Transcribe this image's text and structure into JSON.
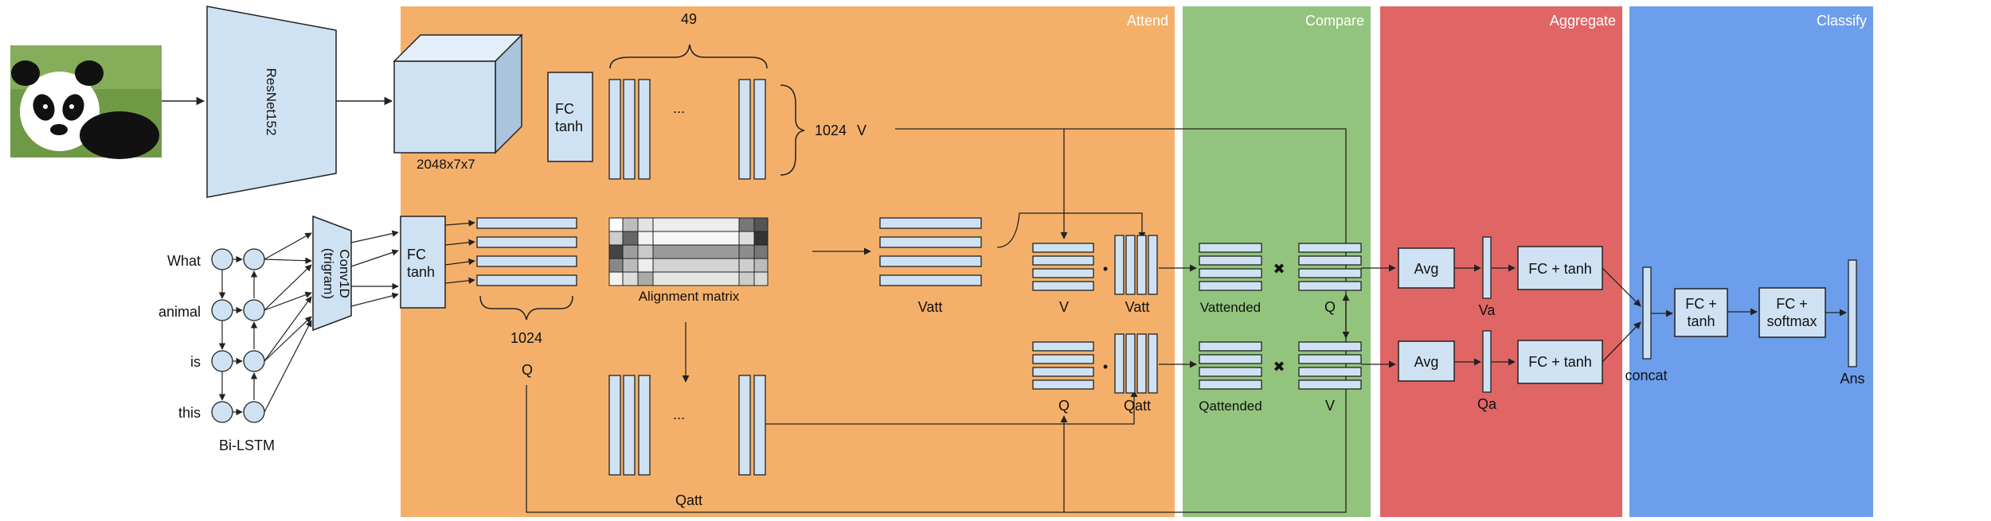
{
  "stages": {
    "attend": "Attend",
    "compare": "Compare",
    "aggregate": "Aggregate",
    "classify": "Classify"
  },
  "colors": {
    "attend": "#F4B06A",
    "compare": "#93C47D",
    "aggregate": "#E06666",
    "classify": "#6D9EEB",
    "block": "#CFE2F3",
    "stroke": "#222222"
  },
  "image": {
    "description_icon": "panda-photo-icon"
  },
  "resnet": {
    "label": "ResNet152"
  },
  "feature_map": {
    "label": "2048x7x7"
  },
  "fc_img": {
    "line1": "FC",
    "line2": "tanh"
  },
  "v_block": {
    "count_label": "49",
    "ellipsis": "...",
    "dim_label": "1024",
    "name": "V"
  },
  "question": {
    "words": [
      "What",
      "animal",
      "is",
      "this"
    ],
    "bilstm_label": "Bi-LSTM",
    "conv_line1": "Conv1D",
    "conv_line2": "(trigram)",
    "fc_line1": "FC",
    "fc_line2": "tanh",
    "dim_label": "1024",
    "name": "Q"
  },
  "alignment": {
    "label": "Alignment matrix"
  },
  "vatt": {
    "label": "Vatt"
  },
  "qatt": {
    "label": "Qatt",
    "ellipsis": "..."
  },
  "products": {
    "top_left": "V",
    "top_right": "Vatt",
    "bottom_left": "Q",
    "bottom_right": "Qatt",
    "dot": "•"
  },
  "compare": {
    "top_result": "Vattended",
    "top_other": "Q",
    "bottom_result": "Qattended",
    "bottom_other": "V",
    "cross": "✖"
  },
  "aggregate": {
    "avg_top": "Avg",
    "avg_bottom": "Avg",
    "va": "Va",
    "qa": "Qa",
    "fc_top": "FC + tanh",
    "fc_bottom": "FC + tanh"
  },
  "classify": {
    "concat": "concat",
    "fc1_line1": "FC +",
    "fc1_line2": "tanh",
    "fc2_line1": "FC +",
    "fc2_line2": "softmax",
    "ans": "Ans"
  }
}
